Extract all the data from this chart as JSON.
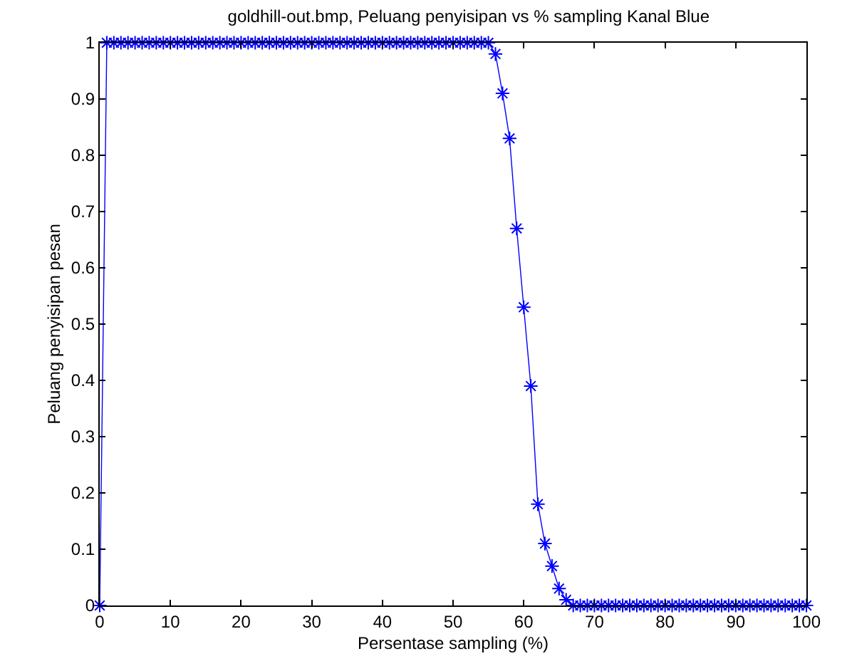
{
  "chart_data": {
    "type": "line",
    "title": "goldhill-out.bmp, Peluang penyisipan vs % sampling Kanal Blue",
    "xlabel": "Persentase sampling (%)",
    "ylabel": "Peluang penyisipan pesan",
    "x": [
      0,
      1,
      2,
      3,
      4,
      5,
      6,
      7,
      8,
      9,
      10,
      11,
      12,
      13,
      14,
      15,
      16,
      17,
      18,
      19,
      20,
      21,
      22,
      23,
      24,
      25,
      26,
      27,
      28,
      29,
      30,
      31,
      32,
      33,
      34,
      35,
      36,
      37,
      38,
      39,
      40,
      41,
      42,
      43,
      44,
      45,
      46,
      47,
      48,
      49,
      50,
      51,
      52,
      53,
      54,
      55,
      56,
      57,
      58,
      59,
      60,
      61,
      62,
      63,
      64,
      65,
      66,
      67,
      68,
      69,
      70,
      71,
      72,
      73,
      74,
      75,
      76,
      77,
      78,
      79,
      80,
      81,
      82,
      83,
      84,
      85,
      86,
      87,
      88,
      89,
      90,
      91,
      92,
      93,
      94,
      95,
      96,
      97,
      98,
      99,
      100
    ],
    "series": [
      {
        "color": "#0000ff",
        "values": [
          0,
          1,
          1,
          1,
          1,
          1,
          1,
          1,
          1,
          1,
          1,
          1,
          1,
          1,
          1,
          1,
          1,
          1,
          1,
          1,
          1,
          1,
          1,
          1,
          1,
          1,
          1,
          1,
          1,
          1,
          1,
          1,
          1,
          1,
          1,
          1,
          1,
          1,
          1,
          1,
          1,
          1,
          1,
          1,
          1,
          1,
          1,
          1,
          1,
          1,
          1,
          1,
          1,
          1,
          1,
          1,
          0.98,
          0.91,
          0.83,
          0.67,
          0.53,
          0.39,
          0.18,
          0.11,
          0.07,
          0.03,
          0.01,
          0,
          0,
          0,
          0,
          0,
          0,
          0,
          0,
          0,
          0,
          0,
          0,
          0,
          0,
          0,
          0,
          0,
          0,
          0,
          0,
          0,
          0,
          0,
          0,
          0,
          0,
          0,
          0,
          0,
          0,
          0,
          0,
          0,
          0
        ]
      }
    ],
    "xlim": [
      0,
      100
    ],
    "xticks": [
      0,
      10,
      20,
      30,
      40,
      50,
      60,
      70,
      80,
      90,
      100
    ],
    "ylim": [
      0,
      1
    ],
    "yticks": [
      0,
      0.1,
      0.2,
      0.3,
      0.4,
      0.5,
      0.6,
      0.7,
      0.8,
      0.9,
      1
    ],
    "grid": false,
    "marker": "cross",
    "line_style": "solid"
  }
}
